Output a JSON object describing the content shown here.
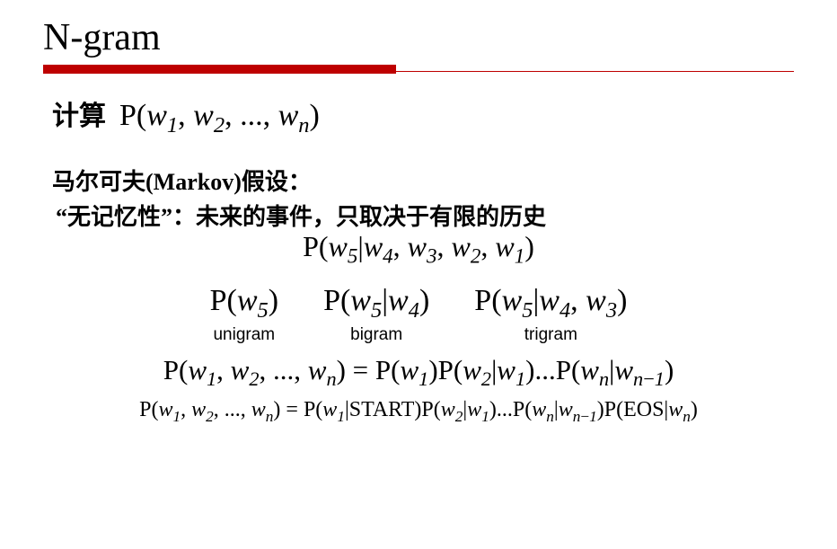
{
  "title": "N-gram",
  "rule": {
    "thick_color": "#be0000",
    "thin_color": "#be0000",
    "thick_width_pct": 47
  },
  "compute_label": "计算",
  "joint_prob": "P(w₁, w₂, ..., wₙ)",
  "markov_heading": "马尔可夫(Markov)假设：",
  "memoryless": "“无记忆性”：未来的事件，只取决于有限的历史",
  "cond_full": "P(w₅|w₄, w₃, w₂, w₁)",
  "grams": [
    {
      "math": "P(w₅)",
      "label": "unigram"
    },
    {
      "math": "P(w₅|w₄)",
      "label": "bigram"
    },
    {
      "math": "P(w₅|w₄, w₃)",
      "label": "trigram"
    }
  ],
  "chain_bigram": "P(w₁, w₂, ..., wₙ) = P(w₁)P(w₂|w₁)...P(wₙ|wₙ₋₁)",
  "chain_start_eos": "P(w₁, w₂, ..., wₙ) = P(w₁|START)P(w₂|w₁)...P(wₙ|wₙ₋₁)P(EOS|wₙ)",
  "colors": {
    "background": "#ffffff",
    "text": "#000000",
    "accent": "#be0000"
  }
}
